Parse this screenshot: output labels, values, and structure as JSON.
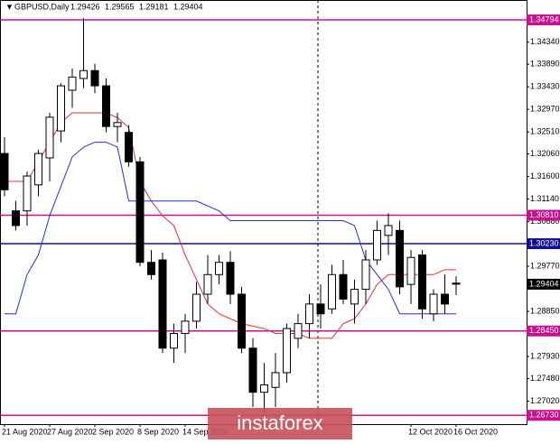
{
  "chart_data": {
    "type": "candlestick",
    "symbol": "GBPUSD,Daily",
    "categories": [
      "21 Aug 2020",
      null,
      null,
      null,
      "27 Aug 2020",
      null,
      null,
      null,
      "2 Sep 2020",
      null,
      null,
      null,
      "8 Sep 2020",
      null,
      null,
      null,
      "14 Sep 2020",
      null,
      null,
      null,
      null,
      null,
      null,
      null,
      null,
      null,
      null,
      null,
      null,
      null,
      null,
      null,
      null,
      null,
      null,
      null,
      "12 Oct 2020",
      null,
      null,
      null,
      "16 Oct 2020"
    ],
    "open": [
      1.3207,
      1.309,
      1.309,
      1.3143,
      1.3198,
      1.3253,
      1.3336,
      1.336,
      1.3376,
      1.3345,
      1.3262,
      1.325,
      1.319,
      1.2985,
      1.299,
      1.281,
      1.284,
      1.2865,
      1.292,
      1.296,
      1.2985,
      1.292,
      1.281,
      1.272,
      1.273,
      1.276,
      1.283,
      1.286,
      1.29,
      1.289,
      1.296,
      1.29,
      1.293,
      1.299,
      1.304,
      1.305,
      1.294,
      1.3,
      1.288,
      1.292,
      1.29426
    ],
    "high": [
      1.324,
      1.311,
      1.317,
      1.3215,
      1.329,
      1.335,
      1.338,
      1.3483,
      1.339,
      1.336,
      1.329,
      1.3265,
      1.32,
      1.301,
      1.3005,
      1.286,
      1.288,
      1.2945,
      1.3,
      1.3,
      1.3008,
      1.2935,
      1.283,
      1.278,
      1.28,
      1.286,
      1.288,
      1.292,
      1.294,
      1.298,
      1.299,
      1.295,
      1.301,
      1.307,
      1.3085,
      1.307,
      1.301,
      1.301,
      1.293,
      1.296,
      1.29565
    ],
    "low": [
      1.312,
      1.305,
      1.306,
      1.312,
      1.315,
      1.323,
      1.33,
      1.334,
      1.333,
      1.325,
      1.323,
      1.318,
      1.2977,
      1.295,
      1.28,
      1.278,
      1.28,
      1.285,
      1.29,
      1.294,
      1.29,
      1.28,
      1.269,
      1.268,
      1.269,
      1.274,
      1.281,
      1.283,
      1.285,
      1.288,
      1.29,
      1.286,
      1.29,
      1.298,
      1.3,
      1.292,
      1.29,
      1.287,
      1.2865,
      1.288,
      1.29181
    ],
    "close": [
      1.3133,
      1.306,
      1.3161,
      1.3207,
      1.3281,
      1.3345,
      1.3363,
      1.3376,
      1.3345,
      1.3262,
      1.327,
      1.319,
      1.2985,
      1.296,
      1.281,
      1.284,
      1.2865,
      1.292,
      1.296,
      1.2985,
      1.292,
      1.281,
      1.272,
      1.2735,
      1.276,
      1.285,
      1.286,
      1.29,
      1.288,
      1.296,
      1.291,
      1.293,
      1.299,
      1.305,
      1.306,
      1.2935,
      1.2995,
      1.289,
      1.292,
      1.29,
      1.29404
    ],
    "lines": [
      {
        "color": "#e03030",
        "values": [
          1.315,
          1.315,
          1.315,
          1.319,
          1.323,
          1.327,
          1.329,
          1.329,
          1.329,
          1.329,
          1.328,
          1.326,
          1.315,
          1.311,
          1.308,
          1.306,
          1.3,
          1.295,
          1.29,
          1.288,
          1.287,
          1.286,
          1.2855,
          1.285,
          1.284,
          1.284,
          1.284,
          1.283,
          1.283,
          1.283,
          1.286,
          1.287,
          1.29,
          1.294,
          1.296,
          1.296,
          1.296,
          1.296,
          1.296,
          1.297,
          1.297
        ]
      },
      {
        "color": "#2030d0",
        "values": [
          1.288,
          1.288,
          1.296,
          1.3,
          1.308,
          1.314,
          1.32,
          1.322,
          1.323,
          1.323,
          1.322,
          1.311,
          1.311,
          1.311,
          1.311,
          1.311,
          1.311,
          1.311,
          1.31,
          1.309,
          1.307,
          1.307,
          1.307,
          1.307,
          1.307,
          1.307,
          1.307,
          1.307,
          1.307,
          1.307,
          1.307,
          1.306,
          1.299,
          1.296,
          1.293,
          1.288,
          1.288,
          1.288,
          1.288,
          1.288,
          1.288
        ]
      }
    ],
    "levels": [
      {
        "value": 1.34794,
        "color": "#c8108c"
      },
      {
        "value": {
          "value": 1.3081,
          "label": "1.30810"
        },
        "color": "#c8108c"
      },
      {
        "value": {
          "value": 1.3023,
          "label": "1.30230"
        },
        "color": "#101090"
      },
      {
        "value": {
          "value": 1.2845,
          "label": "1.28450"
        },
        "color": "#c8108c"
      },
      {
        "value": {
          "value": 1.2673,
          "label": "1.26730"
        },
        "color": "#c8108c"
      }
    ],
    "ylim": [
      1.2655,
      1.352
    ],
    "yticks": [
      {
        "value": 1.2702,
        "label": "1.27020"
      },
      {
        "value": 1.2748,
        "label": "1.27480"
      },
      {
        "value": 1.2793,
        "label": "1.27930"
      },
      {
        "value": 1.2885,
        "label": "1.28850"
      },
      {
        "value": 1.2977,
        "label": "1.29770"
      },
      {
        "value": 1.3068,
        "label": "1.30680"
      },
      {
        "value": 1.3114,
        "label": "1.31140"
      },
      {
        "value": 1.316,
        "label": "1.31600"
      },
      {
        "value": 1.3206,
        "label": "1.32060"
      },
      {
        "value": 1.3251,
        "label": "1.32510"
      },
      {
        "value": 1.3297,
        "label": "1.32970"
      },
      {
        "value": 1.3343,
        "label": "1.33430"
      },
      {
        "value": 1.3389,
        "label": "1.33890"
      },
      {
        "value": 1.3434,
        "label": "1.34340"
      }
    ],
    "watermark": "instaforex"
  }
}
